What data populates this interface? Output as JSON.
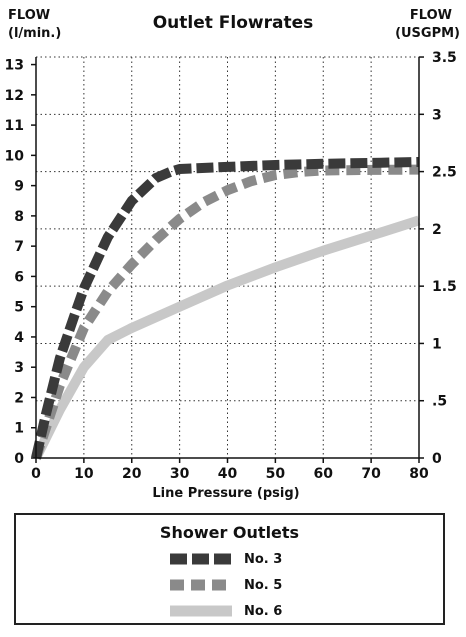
{
  "chart_data": {
    "type": "line",
    "title": "Outlet Flowrates",
    "left_axis_label_line1": "FLOW",
    "left_axis_label_line2": "(l/min.)",
    "right_axis_label_line1": "FLOW",
    "right_axis_label_line2": "(USGPM)",
    "xlabel": "Line Pressure (psig)",
    "xlim": [
      0,
      80
    ],
    "ylim": [
      0,
      13.25
    ],
    "x_ticks": [
      0,
      10,
      20,
      30,
      40,
      50,
      60,
      70,
      80
    ],
    "x_tick_labels": [
      "0",
      "10",
      "20",
      "30",
      "40",
      "50",
      "60",
      "70",
      "80"
    ],
    "y_ticks": [
      0,
      1,
      2,
      3,
      4,
      5,
      6,
      7,
      8,
      9,
      10,
      11,
      12,
      13
    ],
    "y_tick_labels": [
      "0",
      "1",
      "2",
      "3",
      "4",
      "5",
      "6",
      "7",
      "8",
      "9",
      "10",
      "11",
      "12",
      "13"
    ],
    "y2_ticks": [
      0,
      0.5,
      1,
      1.5,
      2,
      2.5,
      3,
      3.5
    ],
    "y2_tick_labels": [
      "0",
      ".5",
      "1",
      "1.5",
      "2",
      "2.5",
      "3",
      "3.5"
    ],
    "grid": "dotted",
    "series": [
      {
        "name": "No. 3",
        "color": "#3a3a3a",
        "style": "dashed-long",
        "x": [
          0,
          2,
          5,
          8,
          10,
          15,
          20,
          25,
          28,
          30,
          40,
          50,
          60,
          70,
          80
        ],
        "y": [
          0,
          1.4,
          3.3,
          4.7,
          5.6,
          7.3,
          8.5,
          9.25,
          9.45,
          9.55,
          9.62,
          9.68,
          9.72,
          9.75,
          9.78
        ]
      },
      {
        "name": "No. 5",
        "color": "#8a8a8a",
        "style": "dashed-medium",
        "x": [
          0,
          5,
          10,
          15,
          20,
          25,
          30,
          35,
          40,
          45,
          50,
          55,
          60,
          70,
          80
        ],
        "y": [
          0,
          2.4,
          4.3,
          5.5,
          6.4,
          7.2,
          7.9,
          8.45,
          8.85,
          9.15,
          9.35,
          9.45,
          9.5,
          9.52,
          9.53
        ]
      },
      {
        "name": "No. 6",
        "color": "#c8c8c8",
        "style": "solid",
        "x": [
          0,
          5,
          10,
          15,
          20,
          30,
          40,
          50,
          60,
          70,
          80
        ],
        "y": [
          0,
          1.6,
          3.0,
          3.9,
          4.3,
          5.0,
          5.7,
          6.3,
          6.85,
          7.35,
          7.85
        ]
      }
    ]
  },
  "legend": {
    "title": "Shower Outlets",
    "items": [
      "No. 3",
      "No. 5",
      "No. 6"
    ]
  }
}
